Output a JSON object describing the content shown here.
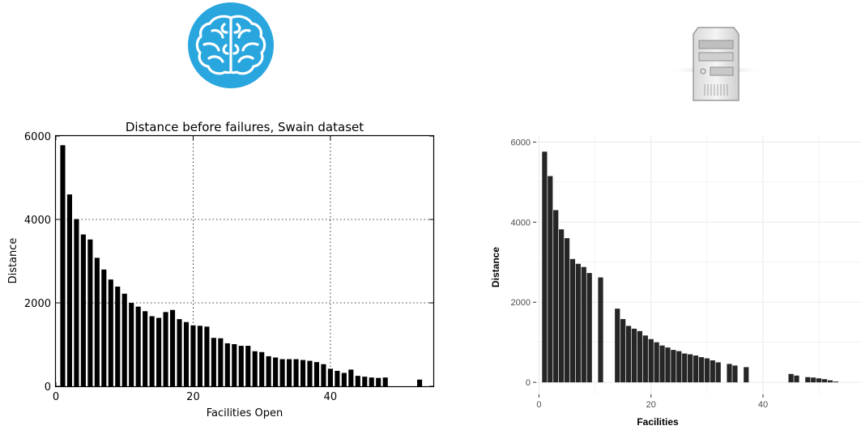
{
  "colors": {
    "brain_circle": "#2aa6df",
    "bar": "#000000",
    "bar_right": "#262626",
    "grid_right": "#ebebeb",
    "tick_text_right": "#4d4d4d"
  },
  "icons": {
    "left": "brain-icon",
    "right": "server-tower-icon"
  },
  "chart_data": [
    {
      "type": "bar",
      "title": "Distance before failures, Swain dataset",
      "xlabel": "Facilities Open",
      "ylabel": "Distance",
      "xlim": [
        0,
        55
      ],
      "ylim": [
        0,
        6000
      ],
      "xticks": [
        "0",
        "20",
        "40"
      ],
      "yticks": [
        "0",
        "2000",
        "4000",
        "6000"
      ],
      "grid": "dotted",
      "x": [
        1,
        2,
        3,
        4,
        5,
        6,
        7,
        8,
        9,
        10,
        11,
        12,
        13,
        14,
        15,
        16,
        17,
        18,
        19,
        20,
        21,
        22,
        23,
        24,
        25,
        26,
        27,
        28,
        29,
        30,
        31,
        32,
        33,
        34,
        35,
        36,
        37,
        38,
        39,
        40,
        41,
        42,
        43,
        44,
        45,
        46,
        47,
        48,
        53
      ],
      "values": [
        5780,
        4600,
        4010,
        3640,
        3520,
        3080,
        2800,
        2560,
        2390,
        2220,
        2000,
        1910,
        1800,
        1680,
        1640,
        1780,
        1830,
        1610,
        1540,
        1460,
        1450,
        1430,
        1160,
        1150,
        1030,
        1010,
        970,
        970,
        840,
        820,
        720,
        690,
        650,
        650,
        650,
        630,
        610,
        580,
        530,
        420,
        370,
        320,
        400,
        250,
        230,
        210,
        200,
        210,
        160
      ]
    },
    {
      "type": "bar",
      "title": "",
      "xlabel": "Facilities",
      "ylabel": "Distance",
      "xlim": [
        -0.5,
        57.5
      ],
      "ylim": [
        -300,
        6150
      ],
      "xticks": [
        "0",
        "20",
        "40"
      ],
      "yticks": [
        "0",
        "2000",
        "4000",
        "6000"
      ],
      "grid": "light",
      "x": [
        1,
        2,
        3,
        4,
        5,
        6,
        7,
        8,
        9,
        11,
        14,
        15,
        16,
        17,
        18,
        19,
        20,
        21,
        22,
        23,
        24,
        25,
        26,
        27,
        28,
        29,
        30,
        31,
        32,
        34,
        35,
        37,
        45,
        46,
        48,
        49,
        50,
        51,
        52,
        53
      ],
      "values": [
        5760,
        5150,
        4300,
        3820,
        3600,
        3080,
        2960,
        2880,
        2730,
        2620,
        1840,
        1580,
        1410,
        1340,
        1280,
        1170,
        1080,
        1000,
        920,
        870,
        810,
        780,
        720,
        700,
        670,
        630,
        600,
        550,
        500,
        460,
        420,
        380,
        210,
        170,
        130,
        120,
        100,
        80,
        50,
        20
      ]
    }
  ]
}
